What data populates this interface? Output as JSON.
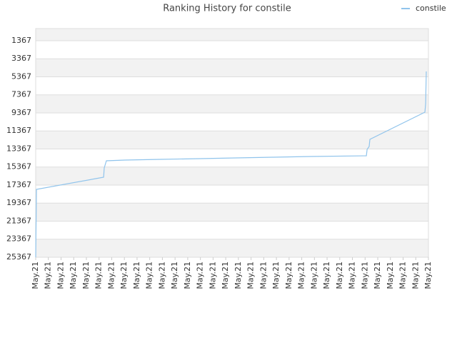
{
  "chart_data": {
    "type": "line",
    "title": "Ranking History for constile",
    "xlim": [
      0,
      31
    ],
    "xticks": [
      {
        "value": 0,
        "label": "May.21"
      },
      {
        "value": 1,
        "label": "May.21"
      },
      {
        "value": 2,
        "label": "May.21"
      },
      {
        "value": 3,
        "label": "May.21"
      },
      {
        "value": 4,
        "label": "May.21"
      },
      {
        "value": 5,
        "label": "May.21"
      },
      {
        "value": 6,
        "label": "May.21"
      },
      {
        "value": 7,
        "label": "May.21"
      },
      {
        "value": 8,
        "label": "May.21"
      },
      {
        "value": 9,
        "label": "May.21"
      },
      {
        "value": 10,
        "label": "May.21"
      },
      {
        "value": 11,
        "label": "May.21"
      },
      {
        "value": 12,
        "label": "May.21"
      },
      {
        "value": 13,
        "label": "May.21"
      },
      {
        "value": 14,
        "label": "May.21"
      },
      {
        "value": 15,
        "label": "May.21"
      },
      {
        "value": 16,
        "label": "May.21"
      },
      {
        "value": 17,
        "label": "May.21"
      },
      {
        "value": 18,
        "label": "May.21"
      },
      {
        "value": 19,
        "label": "May.21"
      },
      {
        "value": 20,
        "label": "May.21"
      },
      {
        "value": 21,
        "label": "May.21"
      },
      {
        "value": 22,
        "label": "May.21"
      },
      {
        "value": 23,
        "label": "May.21"
      },
      {
        "value": 24,
        "label": "May.21"
      },
      {
        "value": 25,
        "label": "May.21"
      },
      {
        "value": 26,
        "label": "May.21"
      },
      {
        "value": 27,
        "label": "May.21"
      },
      {
        "value": 28,
        "label": "May.21"
      },
      {
        "value": 29,
        "label": "May.21"
      },
      {
        "value": 30,
        "label": "May.21"
      },
      {
        "value": 31,
        "label": "May.21"
      }
    ],
    "ylim": [
      21,
      25367
    ],
    "y_reversed": true,
    "yticks": [
      1367,
      3367,
      5367,
      7367,
      9367,
      11367,
      13367,
      15367,
      17367,
      19367,
      21367,
      23367,
      25367
    ],
    "grid": true,
    "legend": "top-right",
    "series": [
      {
        "name": "constile",
        "color": "#90c4ec",
        "x": [
          0,
          0.06,
          5.36,
          5.41,
          5.58,
          7.05,
          9.86,
          12.97,
          15.78,
          18.77,
          21.7,
          26.1,
          26.16,
          26.32,
          26.38,
          30.72,
          30.78,
          30.83
        ],
        "values": [
          25367,
          17842,
          16496,
          15466,
          14674,
          14595,
          14516,
          14436,
          14357,
          14278,
          14198,
          14119,
          13407,
          13090,
          12297,
          9288,
          8337,
          4773
        ]
      }
    ]
  }
}
